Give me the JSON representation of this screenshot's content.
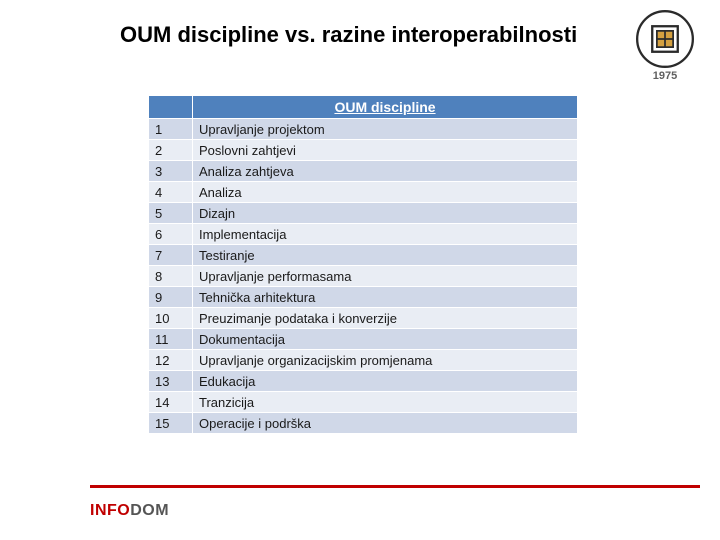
{
  "title": "OUM discipline vs. razine interoperabilnosti",
  "logo_year": "1975",
  "table": {
    "header_num": "",
    "header_label": "OUM discipline",
    "header_bg": "#4f81bd",
    "header_fg": "#ffffff",
    "row_bg_odd": "#d0d8e8",
    "row_bg_even": "#e9edf4",
    "rows": [
      {
        "n": "1",
        "label": "Upravljanje projektom"
      },
      {
        "n": "2",
        "label": "Poslovni zahtjevi"
      },
      {
        "n": "3",
        "label": "Analiza zahtjeva"
      },
      {
        "n": "4",
        "label": "Analiza"
      },
      {
        "n": "5",
        "label": "Dizajn"
      },
      {
        "n": "6",
        "label": "Implementacija"
      },
      {
        "n": "7",
        "label": "Testiranje"
      },
      {
        "n": "8",
        "label": "Upravljanje performasama"
      },
      {
        "n": "9",
        "label": "Tehnička arhitektura"
      },
      {
        "n": "10",
        "label": "Preuzimanje podataka i konverzije"
      },
      {
        "n": "11",
        "label": "Dokumentacija"
      },
      {
        "n": "12",
        "label": "Upravljanje organizacijskim promjenama"
      },
      {
        "n": "13",
        "label": "Edukacija"
      },
      {
        "n": "14",
        "label": "Tranzicija"
      },
      {
        "n": "15",
        "label": "Operacije i podrška"
      }
    ]
  },
  "footer": {
    "brand_left": "INFO",
    "brand_right": "DOM",
    "line_color": "#c00000"
  }
}
